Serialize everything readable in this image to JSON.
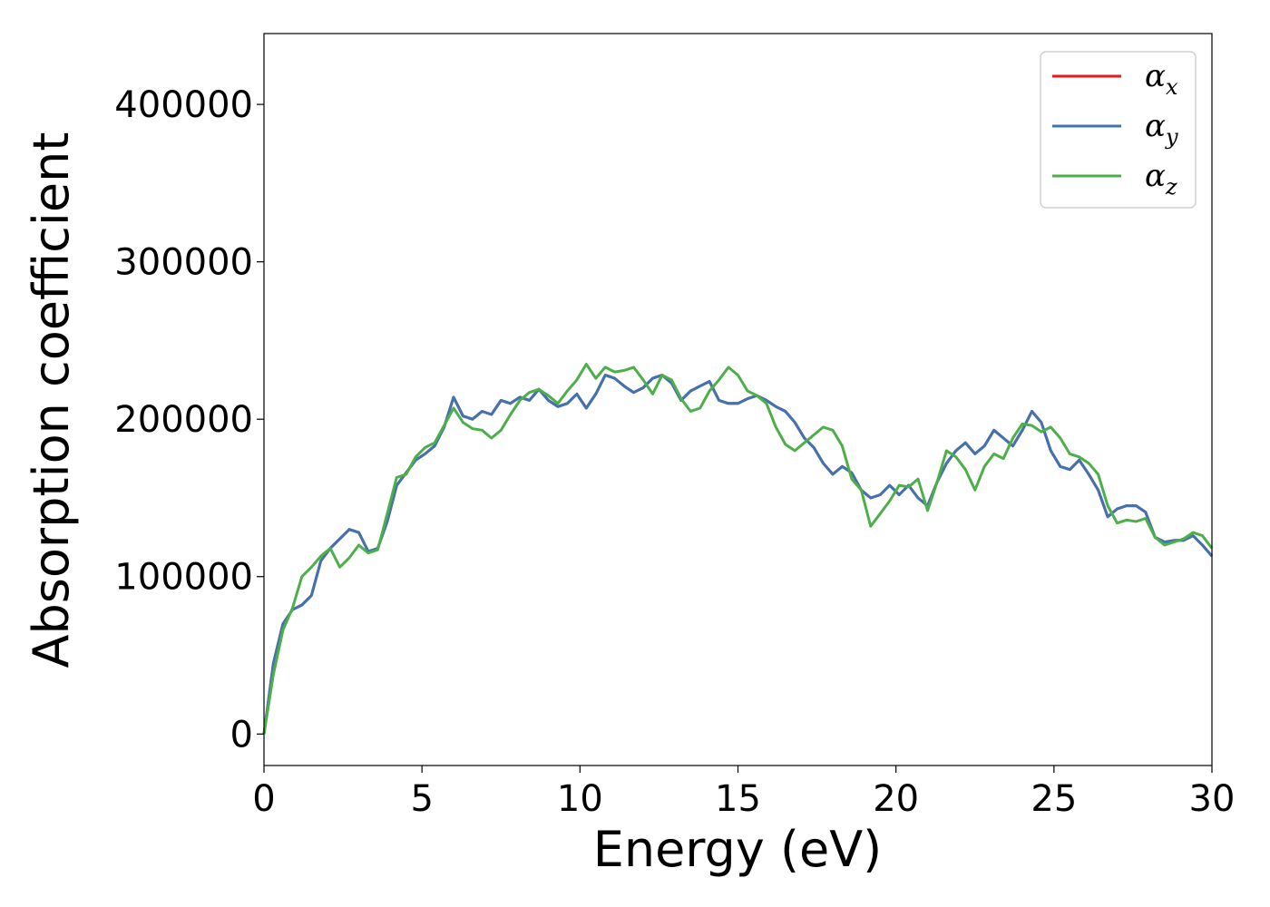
{
  "chart_data": {
    "type": "line",
    "title": "",
    "xlabel": "Energy (eV)",
    "ylabel": "Absorption coefficient",
    "xlim": [
      0,
      30
    ],
    "ylim": [
      -20000,
      445000
    ],
    "xticks": [
      0,
      5,
      10,
      15,
      20,
      25,
      30
    ],
    "yticks": [
      0,
      100000,
      200000,
      300000,
      400000
    ],
    "xtick_labels": [
      "0",
      "5",
      "10",
      "15",
      "20",
      "25",
      "30"
    ],
    "ytick_labels": [
      "0",
      "100000",
      "200000",
      "300000",
      "400000"
    ],
    "grid": false,
    "legend_position": "top-right",
    "series": [
      {
        "name": "α",
        "name_sub": "x",
        "color": "#e41a1c",
        "x": [
          0,
          0.3,
          0.6,
          0.9,
          1.2,
          1.5,
          1.8,
          2.1,
          2.4,
          2.7,
          3.0,
          3.3,
          3.6,
          3.9,
          4.2,
          4.5,
          4.8,
          5.1,
          5.4,
          5.7,
          6.0,
          6.3,
          6.6,
          6.9,
          7.2,
          7.5,
          7.8,
          8.1,
          8.4,
          8.7,
          9.0,
          9.3,
          9.6,
          9.9,
          10.2,
          10.5,
          10.8,
          11.1,
          11.4,
          11.7,
          12.0,
          12.3,
          12.6,
          12.9,
          13.2,
          13.5,
          13.8,
          14.1,
          14.4,
          14.7,
          15.0,
          15.3,
          15.6,
          15.9,
          16.2,
          16.5,
          16.8,
          17.1,
          17.4,
          17.7,
          18.0,
          18.3,
          18.6,
          18.9,
          19.2,
          19.5,
          19.8,
          20.1,
          20.4,
          20.7,
          21.0,
          21.3,
          21.6,
          21.9,
          22.2,
          22.5,
          22.8,
          23.1,
          23.4,
          23.7,
          24.0,
          24.3,
          24.6,
          24.9,
          25.2,
          25.5,
          25.8,
          26.1,
          26.4,
          26.7,
          27.0,
          27.3,
          27.6,
          27.9,
          28.2,
          28.5,
          28.8,
          29.1,
          29.4,
          29.7,
          30.0
        ],
        "values": [
          0,
          45000,
          70000,
          79000,
          82000,
          88000,
          110000,
          118000,
          124000,
          130000,
          128000,
          116000,
          118000,
          135000,
          158000,
          166000,
          174000,
          178000,
          183000,
          195000,
          214000,
          202000,
          200000,
          205000,
          203000,
          212000,
          210000,
          214000,
          212000,
          219000,
          212000,
          208000,
          210000,
          216000,
          207000,
          216000,
          228000,
          226000,
          221000,
          217000,
          220000,
          226000,
          228000,
          223000,
          212000,
          218000,
          221000,
          224000,
          212000,
          210000,
          210000,
          213000,
          215000,
          212000,
          208000,
          205000,
          198000,
          188000,
          182000,
          172000,
          165000,
          170000,
          166000,
          155000,
          150000,
          152000,
          158000,
          152000,
          158000,
          150000,
          145000,
          160000,
          172000,
          180000,
          185000,
          178000,
          183000,
          193000,
          188000,
          183000,
          193000,
          205000,
          198000,
          180000,
          170000,
          168000,
          174000,
          165000,
          155000,
          138000,
          143000,
          145000,
          145000,
          141000,
          125000,
          122000,
          123000,
          123000,
          126000,
          120000,
          113000
        ]
      },
      {
        "name": "α",
        "name_sub": "y",
        "color": "#3f74b1",
        "x": [
          0,
          0.3,
          0.6,
          0.9,
          1.2,
          1.5,
          1.8,
          2.1,
          2.4,
          2.7,
          3.0,
          3.3,
          3.6,
          3.9,
          4.2,
          4.5,
          4.8,
          5.1,
          5.4,
          5.7,
          6.0,
          6.3,
          6.6,
          6.9,
          7.2,
          7.5,
          7.8,
          8.1,
          8.4,
          8.7,
          9.0,
          9.3,
          9.6,
          9.9,
          10.2,
          10.5,
          10.8,
          11.1,
          11.4,
          11.7,
          12.0,
          12.3,
          12.6,
          12.9,
          13.2,
          13.5,
          13.8,
          14.1,
          14.4,
          14.7,
          15.0,
          15.3,
          15.6,
          15.9,
          16.2,
          16.5,
          16.8,
          17.1,
          17.4,
          17.7,
          18.0,
          18.3,
          18.6,
          18.9,
          19.2,
          19.5,
          19.8,
          20.1,
          20.4,
          20.7,
          21.0,
          21.3,
          21.6,
          21.9,
          22.2,
          22.5,
          22.8,
          23.1,
          23.4,
          23.7,
          24.0,
          24.3,
          24.6,
          24.9,
          25.2,
          25.5,
          25.8,
          26.1,
          26.4,
          26.7,
          27.0,
          27.3,
          27.6,
          27.9,
          28.2,
          28.5,
          28.8,
          29.1,
          29.4,
          29.7,
          30.0
        ],
        "values": [
          0,
          45000,
          70000,
          79000,
          82000,
          88000,
          110000,
          118000,
          124000,
          130000,
          128000,
          116000,
          118000,
          135000,
          158000,
          166000,
          174000,
          178000,
          183000,
          195000,
          214000,
          202000,
          200000,
          205000,
          203000,
          212000,
          210000,
          214000,
          212000,
          219000,
          212000,
          208000,
          210000,
          216000,
          207000,
          216000,
          228000,
          226000,
          221000,
          217000,
          220000,
          226000,
          228000,
          223000,
          212000,
          218000,
          221000,
          224000,
          212000,
          210000,
          210000,
          213000,
          215000,
          212000,
          208000,
          205000,
          198000,
          188000,
          182000,
          172000,
          165000,
          170000,
          166000,
          155000,
          150000,
          152000,
          158000,
          152000,
          158000,
          150000,
          145000,
          160000,
          172000,
          180000,
          185000,
          178000,
          183000,
          193000,
          188000,
          183000,
          193000,
          205000,
          198000,
          180000,
          170000,
          168000,
          174000,
          165000,
          155000,
          138000,
          143000,
          145000,
          145000,
          141000,
          125000,
          122000,
          123000,
          123000,
          126000,
          120000,
          113000
        ]
      },
      {
        "name": "α",
        "name_sub": "z",
        "color": "#4daf4a",
        "x": [
          0,
          0.3,
          0.6,
          0.9,
          1.2,
          1.5,
          1.8,
          2.1,
          2.4,
          2.7,
          3.0,
          3.3,
          3.6,
          3.9,
          4.2,
          4.5,
          4.8,
          5.1,
          5.4,
          5.7,
          6.0,
          6.3,
          6.6,
          6.9,
          7.2,
          7.5,
          7.8,
          8.1,
          8.4,
          8.7,
          9.0,
          9.3,
          9.6,
          9.9,
          10.2,
          10.5,
          10.8,
          11.1,
          11.4,
          11.7,
          12.0,
          12.3,
          12.6,
          12.9,
          13.2,
          13.5,
          13.8,
          14.1,
          14.4,
          14.7,
          15.0,
          15.3,
          15.6,
          15.9,
          16.2,
          16.5,
          16.8,
          17.1,
          17.4,
          17.7,
          18.0,
          18.3,
          18.6,
          18.9,
          19.2,
          19.5,
          19.8,
          20.1,
          20.4,
          20.7,
          21.0,
          21.3,
          21.6,
          21.9,
          22.2,
          22.5,
          22.8,
          23.1,
          23.4,
          23.7,
          24.0,
          24.3,
          24.6,
          24.9,
          25.2,
          25.5,
          25.8,
          26.1,
          26.4,
          26.7,
          27.0,
          27.3,
          27.6,
          27.9,
          28.2,
          28.5,
          28.8,
          29.1,
          29.4,
          29.7,
          30.0
        ],
        "values": [
          0,
          38000,
          66000,
          80000,
          100000,
          106000,
          113000,
          118000,
          106000,
          112000,
          120000,
          115000,
          117000,
          140000,
          163000,
          165000,
          176000,
          182000,
          185000,
          196000,
          207000,
          198000,
          194000,
          193000,
          188000,
          193000,
          203000,
          212000,
          217000,
          219000,
          215000,
          210000,
          218000,
          225000,
          235000,
          226000,
          233000,
          230000,
          231000,
          233000,
          225000,
          216000,
          228000,
          225000,
          213000,
          205000,
          207000,
          218000,
          225000,
          233000,
          228000,
          218000,
          215000,
          210000,
          195000,
          184000,
          180000,
          185000,
          190000,
          195000,
          193000,
          183000,
          162000,
          155000,
          132000,
          140000,
          148000,
          158000,
          157000,
          162000,
          142000,
          160000,
          180000,
          176000,
          168000,
          155000,
          170000,
          178000,
          175000,
          188000,
          197000,
          196000,
          192000,
          195000,
          188000,
          178000,
          176000,
          172000,
          165000,
          145000,
          134000,
          136000,
          135000,
          137000,
          125000,
          120000,
          122000,
          124000,
          128000,
          126000,
          118000
        ]
      }
    ]
  }
}
